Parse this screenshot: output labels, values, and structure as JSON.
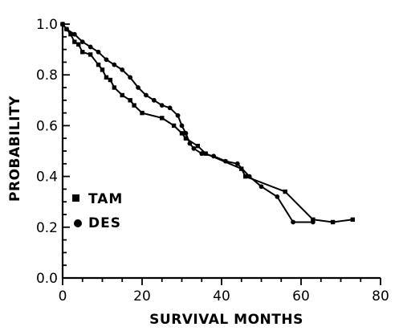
{
  "chart_data": {
    "type": "line",
    "title": "",
    "xlabel": "SURVIVAL MONTHS",
    "ylabel": "PROBABILITY",
    "xlim": [
      0,
      80
    ],
    "ylim": [
      0,
      1.0
    ],
    "x_ticks": [
      0,
      20,
      40,
      60,
      80
    ],
    "x_tick_labels": [
      "0",
      "20",
      "40",
      "60",
      "80"
    ],
    "y_ticks": [
      0,
      0.2,
      0.4,
      0.6,
      0.8,
      1.0
    ],
    "y_tick_labels": [
      "0.0",
      "0.2",
      "0.4",
      "0.6",
      "0.8",
      "1.0"
    ],
    "grid": false,
    "legend_position": "lower-left",
    "series": [
      {
        "name": "TAM",
        "marker": "square",
        "color": "#000000",
        "points": [
          [
            0,
            1.0
          ],
          [
            1,
            0.98
          ],
          [
            2,
            0.96
          ],
          [
            3,
            0.93
          ],
          [
            4,
            0.92
          ],
          [
            5,
            0.89
          ],
          [
            7,
            0.88
          ],
          [
            9,
            0.84
          ],
          [
            10,
            0.82
          ],
          [
            11,
            0.79
          ],
          [
            12,
            0.78
          ],
          [
            13,
            0.75
          ],
          [
            15,
            0.72
          ],
          [
            17,
            0.7
          ],
          [
            18,
            0.68
          ],
          [
            20,
            0.65
          ],
          [
            25,
            0.63
          ],
          [
            28,
            0.6
          ],
          [
            30,
            0.57
          ],
          [
            31,
            0.55
          ],
          [
            34,
            0.52
          ],
          [
            36,
            0.49
          ],
          [
            45,
            0.43
          ],
          [
            46,
            0.4
          ],
          [
            56,
            0.34
          ],
          [
            63,
            0.23
          ],
          [
            68,
            0.22
          ],
          [
            73,
            0.23
          ]
        ]
      },
      {
        "name": "DES",
        "marker": "circle",
        "color": "#000000",
        "points": [
          [
            0,
            1.0
          ],
          [
            1,
            0.98
          ],
          [
            3,
            0.96
          ],
          [
            5,
            0.93
          ],
          [
            7,
            0.91
          ],
          [
            9,
            0.89
          ],
          [
            11,
            0.86
          ],
          [
            13,
            0.84
          ],
          [
            15,
            0.82
          ],
          [
            17,
            0.79
          ],
          [
            19,
            0.75
          ],
          [
            21,
            0.72
          ],
          [
            23,
            0.7
          ],
          [
            25,
            0.68
          ],
          [
            27,
            0.67
          ],
          [
            29,
            0.64
          ],
          [
            30,
            0.6
          ],
          [
            31,
            0.57
          ],
          [
            32,
            0.53
          ],
          [
            33,
            0.51
          ],
          [
            35,
            0.49
          ],
          [
            38,
            0.48
          ],
          [
            41,
            0.46
          ],
          [
            44,
            0.45
          ],
          [
            47,
            0.4
          ],
          [
            50,
            0.36
          ],
          [
            54,
            0.32
          ],
          [
            58,
            0.22
          ],
          [
            63,
            0.22
          ]
        ]
      }
    ]
  }
}
